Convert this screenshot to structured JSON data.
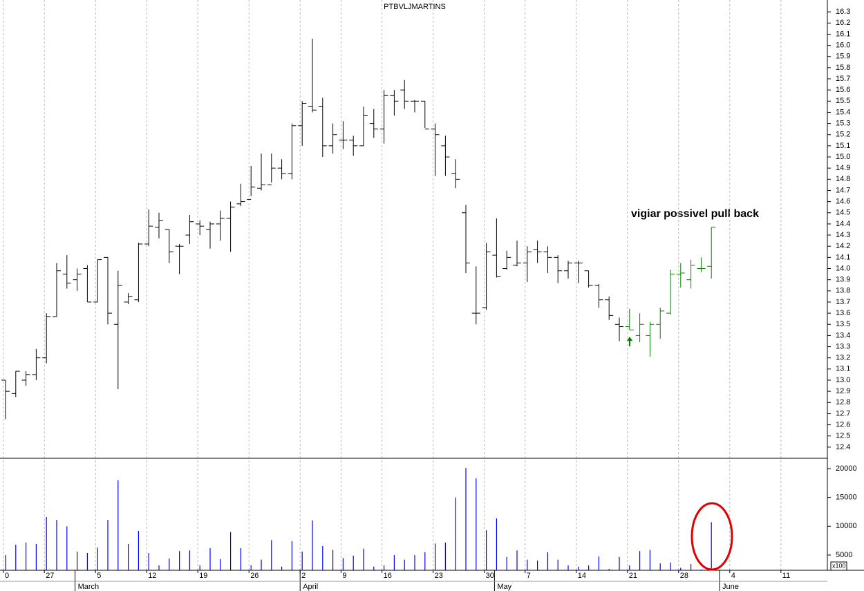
{
  "chart_data": [
    {
      "type": "ohlc",
      "title": "PTBVLJMARTINS",
      "annotation": "vigiar possivel pull back",
      "annotation_color": "#1f1fd0",
      "open": [
        13.0,
        12.88,
        13.0,
        13.05,
        13.2,
        13.57,
        13.95,
        13.9,
        14.0,
        13.7,
        14.1,
        13.5,
        13.7,
        13.72,
        14.22,
        14.37,
        14.35,
        14.2,
        14.3,
        14.4,
        14.35,
        14.4,
        14.45,
        14.58,
        14.62,
        14.72,
        14.75,
        14.9,
        14.85,
        15.28,
        15.45,
        15.45,
        15.1,
        15.15,
        15.15,
        15.1,
        15.3,
        15.25,
        15.55,
        15.6,
        15.5,
        15.5,
        15.25,
        15.1,
        14.85,
        14.5,
        13.6,
        13.65,
        14.12,
        14.0,
        14.03,
        14.05,
        14.17,
        14.15,
        14.1,
        13.98,
        14.05,
        13.98,
        13.85,
        13.72,
        13.5,
        13.48,
        13.4,
        13.4,
        13.5,
        13.6,
        13.95,
        13.9,
        14.0,
        14.02,
        null,
        null,
        null,
        null,
        null,
        null,
        null,
        null,
        null,
        null,
        null
      ],
      "high": [
        13.0,
        13.08,
        13.08,
        13.28,
        13.6,
        14.05,
        14.12,
        14.0,
        14.03,
        14.08,
        14.1,
        13.98,
        13.78,
        14.23,
        14.53,
        14.5,
        14.35,
        14.22,
        14.48,
        14.43,
        14.42,
        14.52,
        14.6,
        14.76,
        14.92,
        15.03,
        15.03,
        14.98,
        15.3,
        15.5,
        16.06,
        15.53,
        15.3,
        15.32,
        15.19,
        15.45,
        15.43,
        15.6,
        15.6,
        15.69,
        15.51,
        15.5,
        15.3,
        15.19,
        14.98,
        14.57,
        14.02,
        14.23,
        14.45,
        14.16,
        14.25,
        14.2,
        14.25,
        14.2,
        14.12,
        14.07,
        14.07,
        13.98,
        13.86,
        13.75,
        13.56,
        13.64,
        13.6,
        13.52,
        13.65,
        13.99,
        14.05,
        14.08,
        14.1,
        14.37,
        null,
        null,
        null,
        null,
        null,
        null,
        null,
        null,
        null,
        null,
        null
      ],
      "low": [
        12.65,
        12.85,
        12.95,
        13.0,
        13.15,
        13.57,
        13.82,
        13.8,
        13.7,
        13.7,
        13.5,
        12.92,
        13.68,
        13.7,
        14.2,
        14.27,
        14.05,
        13.95,
        14.22,
        14.3,
        14.18,
        14.25,
        14.15,
        14.56,
        14.65,
        14.7,
        14.77,
        14.8,
        14.8,
        15.1,
        15.4,
        15.0,
        15.03,
        15.07,
        15.01,
        15.1,
        15.17,
        15.12,
        15.37,
        15.43,
        15.4,
        15.26,
        14.83,
        14.83,
        14.72,
        13.96,
        13.5,
        13.63,
        13.92,
        13.99,
        14.02,
        13.88,
        14.05,
        13.96,
        13.87,
        13.91,
        13.87,
        13.83,
        13.65,
        13.54,
        13.35,
        13.45,
        13.34,
        13.21,
        13.37,
        13.59,
        13.83,
        13.82,
        13.97,
        13.91,
        null,
        null,
        null,
        null,
        null,
        null,
        null,
        null,
        null,
        null,
        null
      ],
      "close": [
        12.9,
        13.08,
        13.05,
        13.2,
        13.57,
        13.98,
        13.87,
        13.95,
        13.7,
        14.08,
        13.6,
        13.85,
        13.75,
        14.22,
        14.38,
        14.43,
        14.15,
        14.2,
        14.42,
        14.38,
        14.4,
        14.45,
        14.55,
        14.6,
        14.73,
        14.75,
        14.9,
        14.85,
        15.28,
        15.48,
        15.42,
        15.1,
        15.2,
        15.15,
        15.1,
        15.37,
        15.25,
        15.55,
        15.5,
        15.5,
        15.5,
        15.25,
        15.2,
        15.0,
        14.8,
        14.05,
        13.6,
        14.15,
        13.93,
        14.1,
        14.05,
        14.15,
        14.15,
        14.1,
        13.98,
        14.05,
        14.05,
        13.85,
        13.72,
        13.58,
        13.48,
        13.45,
        13.5,
        13.5,
        13.62,
        13.95,
        13.96,
        14.03,
        14.0,
        14.37,
        null,
        null,
        null,
        null,
        null,
        null,
        null,
        null,
        null,
        null,
        null
      ],
      "colors": [
        "#000000",
        "#000000",
        "#000000",
        "#000000",
        "#000000",
        "#000000",
        "#000000",
        "#000000",
        "#000000",
        "#000000",
        "#000000",
        "#000000",
        "#000000",
        "#000000",
        "#000000",
        "#000000",
        "#000000",
        "#000000",
        "#000000",
        "#000000",
        "#000000",
        "#000000",
        "#000000",
        "#000000",
        "#000000",
        "#000000",
        "#000000",
        "#000000",
        "#000000",
        "#000000",
        "#000000",
        "#000000",
        "#000000",
        "#000000",
        "#000000",
        "#000000",
        "#000000",
        "#000000",
        "#000000",
        "#000000",
        "#000000",
        "#000000",
        "#000000",
        "#000000",
        "#000000",
        "#000000",
        "#000000",
        "#000000",
        "#000000",
        "#000000",
        "#000000",
        "#000000",
        "#000000",
        "#000000",
        "#000000",
        "#000000",
        "#000000",
        "#000000",
        "#000000",
        "#000000",
        "#000000",
        "#008000",
        "#008000",
        "#008000",
        "#008000",
        "#008000",
        "#008000",
        "#008000",
        "#008000",
        "#008000",
        null,
        null,
        null,
        null,
        null,
        null,
        null,
        null,
        null,
        null,
        null
      ],
      "ylim": [
        12.3,
        16.4
      ],
      "yticks": [
        12.4,
        12.5,
        12.6,
        12.7,
        12.8,
        12.9,
        {
          "value": 13.0,
          "label": "13.0"
        },
        13.1,
        13.2,
        13.3,
        13.4,
        13.5,
        13.6,
        13.7,
        13.8,
        13.9,
        {
          "value": 14.0,
          "label": "14.0"
        },
        14.1,
        14.2,
        14.3,
        14.4,
        14.5,
        14.6,
        14.7,
        14.8,
        14.9,
        {
          "value": 15.0,
          "label": "15.0"
        },
        15.1,
        15.2,
        15.3,
        15.4,
        15.5,
        15.6,
        15.7,
        15.8,
        15.9,
        {
          "value": 16.0,
          "label": "16.0"
        },
        16.1,
        16.2,
        16.3
      ]
    },
    {
      "type": "bar",
      "color": "#0000ff",
      "unit_label": "x100",
      "categories": [
        "0",
        null,
        null,
        null,
        "27",
        null,
        null,
        null,
        null,
        "5",
        null,
        null,
        null,
        null,
        "12",
        null,
        null,
        null,
        null,
        "19",
        null,
        null,
        null,
        null,
        "26",
        null,
        null,
        null,
        null,
        "2",
        null,
        null,
        null,
        "9",
        null,
        null,
        null,
        "16",
        null,
        null,
        null,
        null,
        "23",
        null,
        null,
        null,
        null,
        "30",
        null,
        null,
        null,
        "7",
        null,
        null,
        null,
        null,
        "14",
        null,
        null,
        null,
        null,
        "21",
        null,
        null,
        null,
        null,
        "28",
        null,
        null,
        null,
        null,
        "4",
        null,
        null,
        null,
        null,
        "11",
        null,
        null,
        null,
        null
      ],
      "months": [
        null,
        null,
        null,
        null,
        null,
        null,
        null,
        "March",
        null,
        null,
        null,
        null,
        null,
        null,
        null,
        null,
        null,
        null,
        null,
        null,
        null,
        null,
        null,
        null,
        null,
        null,
        null,
        null,
        null,
        "April",
        null,
        null,
        null,
        null,
        null,
        null,
        null,
        null,
        null,
        null,
        null,
        null,
        null,
        null,
        null,
        null,
        null,
        null,
        "May",
        null,
        null,
        null,
        null,
        null,
        null,
        null,
        null,
        null,
        null,
        null,
        null,
        null,
        null,
        null,
        null,
        null,
        null,
        null,
        null,
        null,
        "June",
        null,
        null,
        null,
        null,
        null,
        null,
        null,
        null,
        null,
        null
      ],
      "values": [
        5000,
        6800,
        7160,
        6920,
        11600,
        11100,
        10000,
        5600,
        5360,
        6300,
        11100,
        18000,
        6920,
        9200,
        5360,
        3200,
        4400,
        5700,
        5800,
        3200,
        6200,
        4300,
        9000,
        6200,
        3200,
        4200,
        7600,
        3000,
        7400,
        5600,
        11000,
        6560,
        5900,
        4500,
        4900,
        6100,
        3000,
        3200,
        5000,
        4200,
        5000,
        5500,
        7000,
        7160,
        15000,
        20100,
        18300,
        9300,
        11360,
        4650,
        5800,
        4200,
        4050,
        5500,
        4200,
        3200,
        3000,
        3200,
        4750,
        2600,
        4650,
        3200,
        5700,
        5900,
        3550,
        3700,
        2800,
        3450,
        2500,
        10700,
        null,
        null,
        null,
        null,
        null,
        null,
        null,
        null,
        null,
        null,
        null
      ],
      "ylim": [
        2360,
        21800
      ],
      "yticks": [
        5000,
        10000,
        15000,
        20000
      ]
    }
  ]
}
